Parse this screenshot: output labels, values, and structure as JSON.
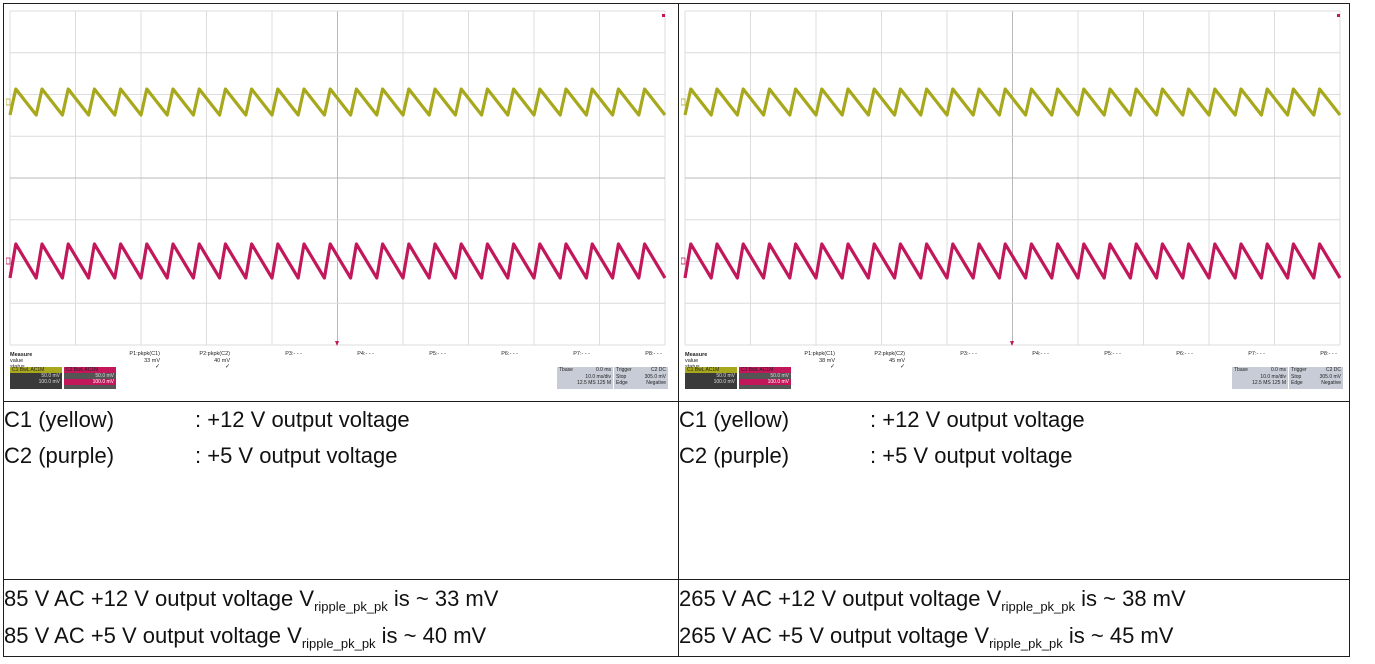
{
  "panels": [
    {
      "scope": {
        "measure_title": "Measure",
        "row_value": "value",
        "row_status": "status",
        "params": [
          {
            "name": "P1:pkpk(C1)",
            "value": "33 mV",
            "status": "✓"
          },
          {
            "name": "P2:pkpk(C2)",
            "value": "40 mV",
            "status": "✓"
          },
          {
            "name": "P3:- - -",
            "value": "",
            "status": ""
          },
          {
            "name": "P4:- - -",
            "value": "",
            "status": ""
          },
          {
            "name": "P5:- - -",
            "value": "",
            "status": ""
          },
          {
            "name": "P6:- - -",
            "value": "",
            "status": ""
          },
          {
            "name": "P7:- - -",
            "value": "",
            "status": ""
          },
          {
            "name": "P8:- - -",
            "value": "",
            "status": ""
          }
        ],
        "channels": [
          {
            "id": "C1",
            "mode": "BwL AC1M",
            "scale": "50.0 mV",
            "offset": "100.0 mV",
            "color": "#a8a81c"
          },
          {
            "id": "C2",
            "mode": "BwL AC1M",
            "scale": "50.0 mV",
            "offset": "100.0 mV",
            "color": "#c2185b"
          }
        ],
        "tbase": {
          "label": "Tbase",
          "delay": "0.0 ms",
          "rate": "10.0 ms/div",
          "samples": "12.5 MS  125 M"
        },
        "trigger": {
          "label": "Trigger",
          "source": "C2 DC",
          "mode": "Stop",
          "level": "305.0 mV",
          "type": "Edge",
          "slope": "Negative"
        }
      },
      "legend": [
        {
          "key": "C1 (yellow)",
          "desc": ": +12 V output voltage"
        },
        {
          "key": "C2 (purple)",
          "desc": ": +5 V output voltage"
        }
      ],
      "results": [
        {
          "pre": "85 V AC +12 V output voltage V",
          "sub": "ripple_pk_pk",
          "post": " is ~ 33 mV"
        },
        {
          "pre": "85 V AC +5 V output voltage V",
          "sub": "ripple_pk_pk",
          "post": " is ~ 40 mV"
        }
      ]
    },
    {
      "scope": {
        "measure_title": "Measure",
        "row_value": "value",
        "row_status": "status",
        "params": [
          {
            "name": "P1:pkpk(C1)",
            "value": "38 mV",
            "status": "✓"
          },
          {
            "name": "P2:pkpk(C2)",
            "value": "45 mV",
            "status": "✓"
          },
          {
            "name": "P3:- - -",
            "value": "",
            "status": ""
          },
          {
            "name": "P4:- - -",
            "value": "",
            "status": ""
          },
          {
            "name": "P5:- - -",
            "value": "",
            "status": ""
          },
          {
            "name": "P6:- - -",
            "value": "",
            "status": ""
          },
          {
            "name": "P7:- - -",
            "value": "",
            "status": ""
          },
          {
            "name": "P8:- - -",
            "value": "",
            "status": ""
          }
        ],
        "channels": [
          {
            "id": "C1",
            "mode": "BwL AC1M",
            "scale": "50.0 mV",
            "offset": "100.0 mV",
            "color": "#a8a81c"
          },
          {
            "id": "C2",
            "mode": "BwL AC1M",
            "scale": "50.0 mV",
            "offset": "100.0 mV",
            "color": "#c2185b"
          }
        ],
        "tbase": {
          "label": "Tbase",
          "delay": "0.0 ms",
          "rate": "10.0 ms/div",
          "samples": "12.5 MS  125 M"
        },
        "trigger": {
          "label": "Trigger",
          "source": "C2 DC",
          "mode": "Stop",
          "level": "305.0 mV",
          "type": "Edge",
          "slope": "Negative"
        }
      },
      "legend": [
        {
          "key": "C1 (yellow)",
          "desc": ": +12 V output voltage"
        },
        {
          "key": "C2 (purple)",
          "desc": ": +5 V output voltage"
        }
      ],
      "results": [
        {
          "pre": "265 V AC +12 V output voltage V",
          "sub": "ripple_pk_pk",
          "post": " is ~ 38 mV"
        },
        {
          "pre": "265 V AC +5 V output voltage V",
          "sub": "ripple_pk_pk",
          "post": " is ~ 45 mV"
        }
      ]
    }
  ],
  "waveforms": {
    "c1_color": "#a8a81c",
    "c2_color": "#c2185b",
    "cycles": 25
  }
}
